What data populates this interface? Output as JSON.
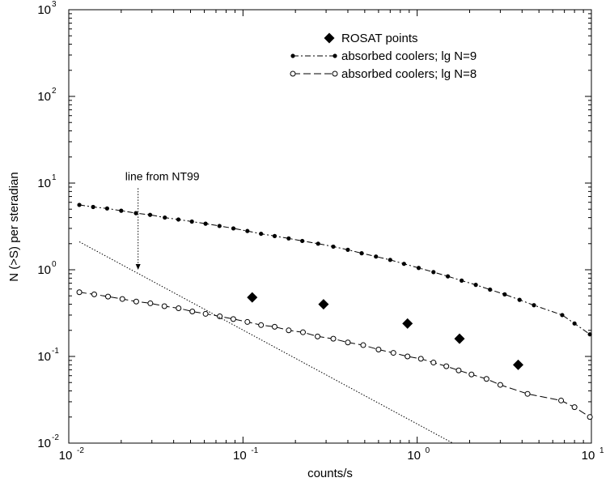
{
  "chart_data": {
    "type": "scatter",
    "xlabel": "counts/s",
    "ylabel": "N (>S) per  steradian",
    "xscale": "log",
    "yscale": "log",
    "xlim": [
      0.01,
      10
    ],
    "ylim": [
      0.01,
      1000
    ],
    "grid": false,
    "legend_position": "top-right",
    "x_ticks": [
      {
        "base": "10",
        "exp": "-2",
        "value": 0.01
      },
      {
        "base": "10",
        "exp": "-1",
        "value": 0.1
      },
      {
        "base": "10",
        "exp": "0",
        "value": 1
      },
      {
        "base": "10",
        "exp": "1",
        "value": 10
      }
    ],
    "y_ticks": [
      {
        "base": "10",
        "exp": "-2",
        "value": 0.01
      },
      {
        "base": "10",
        "exp": "-1",
        "value": 0.1
      },
      {
        "base": "10",
        "exp": "0",
        "value": 1
      },
      {
        "base": "10",
        "exp": "1",
        "value": 10
      },
      {
        "base": "10",
        "exp": "2",
        "value": 100
      },
      {
        "base": "10",
        "exp": "3",
        "value": 1000
      }
    ],
    "annotation": {
      "text": "line from NT99",
      "anchor_x": 0.025,
      "arrow_from_y": 8.0,
      "arrow_to_y": 1.0
    },
    "series": [
      {
        "name": "ROSAT points",
        "style": "markers",
        "marker": "filled-diamond",
        "x": [
          0.113,
          0.29,
          0.88,
          1.75,
          3.8
        ],
        "y": [
          0.48,
          0.4,
          0.24,
          0.16,
          0.08
        ]
      },
      {
        "name": "absorbed coolers; lg N=9",
        "style": "dash-dot",
        "marker": "filled-circle",
        "x": [
          0.0115,
          0.0138,
          0.0166,
          0.02,
          0.0243,
          0.0293,
          0.0356,
          0.0426,
          0.0509,
          0.061,
          0.0733,
          0.0881,
          0.106,
          0.127,
          0.152,
          0.183,
          0.219,
          0.27,
          0.33,
          0.4,
          0.48,
          0.58,
          0.7,
          0.84,
          1.02,
          1.24,
          1.5,
          1.8,
          2.17,
          2.62,
          3.18,
          3.87,
          4.68,
          6.8,
          8.0,
          9.8
        ],
        "y": [
          5.6,
          5.3,
          5.1,
          4.8,
          4.5,
          4.3,
          4.0,
          3.8,
          3.6,
          3.4,
          3.2,
          3.0,
          2.8,
          2.6,
          2.45,
          2.3,
          2.15,
          2.0,
          1.85,
          1.7,
          1.55,
          1.42,
          1.3,
          1.17,
          1.05,
          0.94,
          0.84,
          0.75,
          0.67,
          0.59,
          0.52,
          0.45,
          0.39,
          0.3,
          0.24,
          0.18
        ]
      },
      {
        "name": "absorbed coolers; lg N=8",
        "style": "long-dash",
        "marker": "open-circle",
        "x": [
          0.0115,
          0.014,
          0.0168,
          0.0203,
          0.0244,
          0.0294,
          0.0354,
          0.0427,
          0.0512,
          0.061,
          0.0736,
          0.088,
          0.106,
          0.127,
          0.152,
          0.183,
          0.221,
          0.268,
          0.33,
          0.4,
          0.49,
          0.6,
          0.73,
          0.88,
          1.05,
          1.24,
          1.47,
          1.73,
          2.05,
          2.5,
          3.0,
          4.3,
          6.7,
          8.0,
          9.8
        ],
        "y": [
          0.55,
          0.52,
          0.49,
          0.46,
          0.43,
          0.41,
          0.38,
          0.36,
          0.33,
          0.31,
          0.29,
          0.27,
          0.25,
          0.23,
          0.22,
          0.2,
          0.19,
          0.17,
          0.16,
          0.145,
          0.135,
          0.12,
          0.11,
          0.1,
          0.094,
          0.085,
          0.077,
          0.069,
          0.062,
          0.055,
          0.047,
          0.037,
          0.031,
          0.026,
          0.02
        ]
      },
      {
        "name": "",
        "style": "dotted",
        "marker": "none",
        "x": [
          0.0115,
          1.6
        ],
        "y": [
          2.1,
          0.01
        ]
      }
    ]
  }
}
